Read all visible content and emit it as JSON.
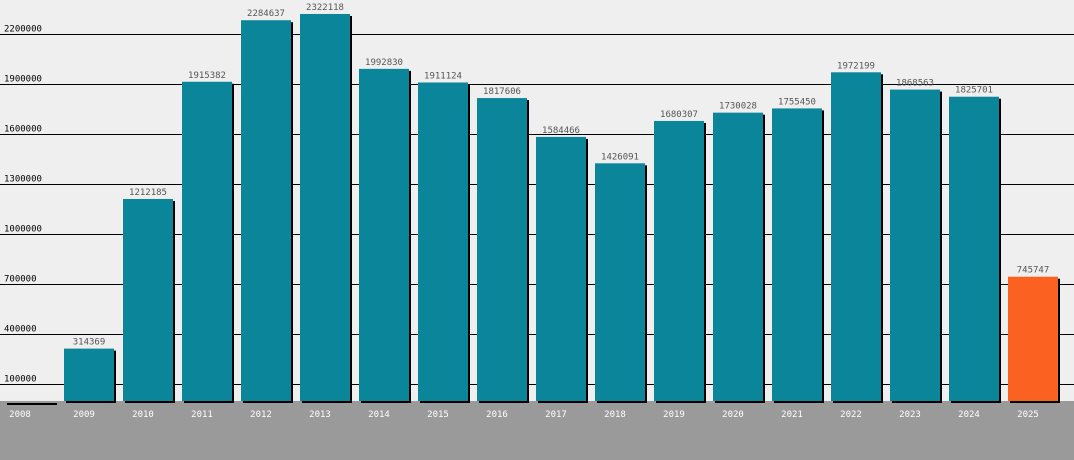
{
  "chart_data": {
    "type": "bar",
    "title": "",
    "xlabel": "",
    "ylabel": "",
    "categories": [
      "2008",
      "2009",
      "2010",
      "2011",
      "2012",
      "2013",
      "2014",
      "2015",
      "2016",
      "2017",
      "2018",
      "2019",
      "2020",
      "2021",
      "2022",
      "2023",
      "2024",
      "2025"
    ],
    "values": [
      0,
      314369,
      1212185,
      1915382,
      2284637,
      2322118,
      1992830,
      1911124,
      1817606,
      1584466,
      1426091,
      1680307,
      1730028,
      1755450,
      1972199,
      1868563,
      1825701,
      745747
    ],
    "data_labels": [
      "",
      "314369",
      "1212185",
      "1915382",
      "2284637",
      "2322118",
      "1992830",
      "1911124",
      "1817606",
      "1584466",
      "1426091",
      "1680307",
      "1730028",
      "1755450",
      "1972199",
      "1868563",
      "1825701",
      "745747"
    ],
    "y_ticks": [
      100000,
      400000,
      700000,
      1000000,
      1300000,
      1600000,
      1900000,
      2200000
    ],
    "ylim": [
      0,
      2400000
    ],
    "grid": true,
    "legend": "none",
    "colors": {
      "background": "#efefef",
      "bar": "#0a8599",
      "highlight_bar": "#fb6121",
      "axis_band": "#9a9a9a",
      "grid": "#000000"
    },
    "highlight_index": 17
  }
}
